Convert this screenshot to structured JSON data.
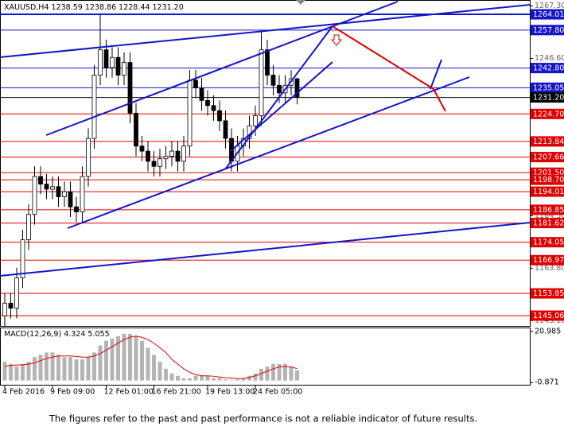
{
  "chart_data": [
    {
      "type": "candlestick",
      "header": [
        "XAUUSD,H4"
      ],
      "open": [
        1145,
        1150,
        1148,
        1160,
        1175,
        1185,
        1200,
        1197,
        1195,
        1196,
        1192,
        1194,
        1188,
        1186,
        1200,
        1215,
        1240,
        1250,
        1243,
        1247,
        1240,
        1245,
        1225,
        1212,
        1210,
        1206,
        1204,
        1207,
        1208,
        1210,
        1206,
        1212,
        1238,
        1235,
        1230,
        1228,
        1226,
        1222,
        1215,
        1206,
        1212,
        1215,
        1220,
        1224,
        1250,
        1240,
        1236,
        1233,
        1236,
        1238.59
      ],
      "high": [
        1154,
        1154,
        1164,
        1179,
        1189,
        1204,
        1204,
        1201,
        1200,
        1200,
        1198,
        1198,
        1192,
        1204,
        1219,
        1244,
        1264,
        1254,
        1251,
        1251,
        1249,
        1249,
        1229,
        1216,
        1214,
        1210,
        1211,
        1212,
        1214,
        1214,
        1216,
        1242,
        1242,
        1239,
        1234,
        1232,
        1230,
        1226,
        1219,
        1216,
        1219,
        1224,
        1228,
        1257,
        1254,
        1244,
        1240,
        1240,
        1242,
        1238.86
      ],
      "low": [
        1141,
        1144,
        1144,
        1156,
        1171,
        1181,
        1193,
        1191,
        1191,
        1188,
        1188,
        1184,
        1182,
        1182,
        1196,
        1211,
        1236,
        1239,
        1239,
        1236,
        1236,
        1221,
        1208,
        1206,
        1202,
        1200,
        1200,
        1203,
        1204,
        1202,
        1202,
        1208,
        1231,
        1226,
        1224,
        1222,
        1218,
        1211,
        1202,
        1202,
        1208,
        1211,
        1216,
        1220,
        1236,
        1232,
        1229,
        1229,
        1232,
        1228.44
      ],
      "close": [
        1150,
        1148,
        1160,
        1175,
        1185,
        1200,
        1197,
        1195,
        1196,
        1192,
        1194,
        1188,
        1186,
        1200,
        1215,
        1240,
        1250,
        1243,
        1247,
        1240,
        1245,
        1225,
        1212,
        1210,
        1206,
        1204,
        1207,
        1208,
        1210,
        1206,
        1212,
        1238,
        1235,
        1230,
        1228,
        1226,
        1222,
        1215,
        1206,
        1212,
        1215,
        1220,
        1224,
        1250,
        1240,
        1236,
        1233,
        1236,
        1238.59,
        1231.2
      ],
      "ylim": [
        1141,
        1268.1
      ],
      "yticks": [
        {
          "value": 1267.3,
          "label": "1267.30"
        },
        {
          "value": 1246.6,
          "label": "1246.60"
        },
        {
          "value": 1184.5,
          "label": "1184.50"
        },
        {
          "value": 1163.8,
          "label": "1163.80"
        },
        {
          "value": 1143.1,
          "label": "1143.10"
        }
      ],
      "levels": [
        {
          "value": 1264.01,
          "label": "1264.01",
          "color": "#1414c8"
        },
        {
          "value": 1257.8,
          "label": "1257.80",
          "color": "#1414c8"
        },
        {
          "value": 1242.8,
          "label": "1242.80",
          "color": "#1414c8"
        },
        {
          "value": 1235.05,
          "label": "1235.05",
          "color": "#1414c8"
        },
        {
          "value": 1231.2,
          "label": "1231.20",
          "color": "#000000"
        },
        {
          "value": 1224.7,
          "label": "1224.70",
          "color": "#e00000"
        },
        {
          "value": 1213.84,
          "label": "1213.84",
          "color": "#e00000"
        },
        {
          "value": 1207.66,
          "label": "1207.66",
          "color": "#e00000"
        },
        {
          "value": 1201.5,
          "label": "1201.50",
          "color": "#e00000"
        },
        {
          "value": 1198.7,
          "label": "1198.70",
          "color": "#e00000"
        },
        {
          "value": 1194.01,
          "label": "1194.01",
          "color": "#e00000"
        },
        {
          "value": 1186.85,
          "label": "1186.85",
          "color": "#e00000"
        },
        {
          "value": 1181.62,
          "label": "1181.62",
          "color": "#e00000"
        },
        {
          "value": 1174.05,
          "label": "1174.05",
          "color": "#e00000"
        },
        {
          "value": 1166.97,
          "label": "1166.97",
          "color": "#e00000"
        },
        {
          "value": 1153.85,
          "label": "1153.85",
          "color": "#e00000"
        },
        {
          "value": 1145.06,
          "label": "1145.06",
          "color": "#e00000"
        }
      ],
      "xticks": [
        {
          "value": 0,
          "label": "4 Feb 2016"
        },
        {
          "value": 8,
          "label": "9 Feb 09:00"
        },
        {
          "value": 17,
          "label": "12 Feb 01:00"
        },
        {
          "value": 25,
          "label": "16 Feb 21:00"
        },
        {
          "value": 34,
          "label": "19 Feb 13:00"
        },
        {
          "value": 42,
          "label": "24 Feb 05:00"
        }
      ]
    },
    {
      "type": "macd",
      "title": "MACD(12,26,9)",
      "histogram": [
        8,
        7,
        6,
        7,
        8,
        10,
        11,
        12,
        12,
        11,
        10,
        10,
        9,
        9,
        10,
        12,
        15,
        17,
        18,
        19,
        20,
        20,
        19,
        17,
        14,
        11,
        8,
        5,
        3,
        2,
        1,
        1,
        2,
        2,
        2,
        1,
        1,
        0.5,
        0.3,
        0.5,
        1,
        2,
        3,
        5,
        6,
        7,
        7,
        7,
        6,
        4.324
      ],
      "signal": [
        6,
        6.5,
        6.6,
        6.7,
        7,
        7.5,
        8.5,
        9.5,
        10,
        10.5,
        10.5,
        10.5,
        10.3,
        10,
        10,
        10.5,
        11.5,
        13,
        14.5,
        16,
        17.5,
        18.5,
        19,
        18.5,
        17.5,
        16,
        14,
        12,
        9,
        7,
        5,
        3.5,
        2.5,
        2,
        2,
        1.8,
        1.5,
        1.2,
        1,
        0.8,
        0.9,
        1.3,
        2,
        3,
        4,
        5,
        5.8,
        6,
        5.8,
        5.055
      ],
      "color": "#b4b4b4",
      "signal_color": "#e00000",
      "ylim": [
        -1.5,
        22
      ],
      "yticks": [
        20.985,
        -0.871
      ]
    }
  ],
  "disclaimer": "The figures refer to the past and past performance is not a reliable indicator of future results."
}
